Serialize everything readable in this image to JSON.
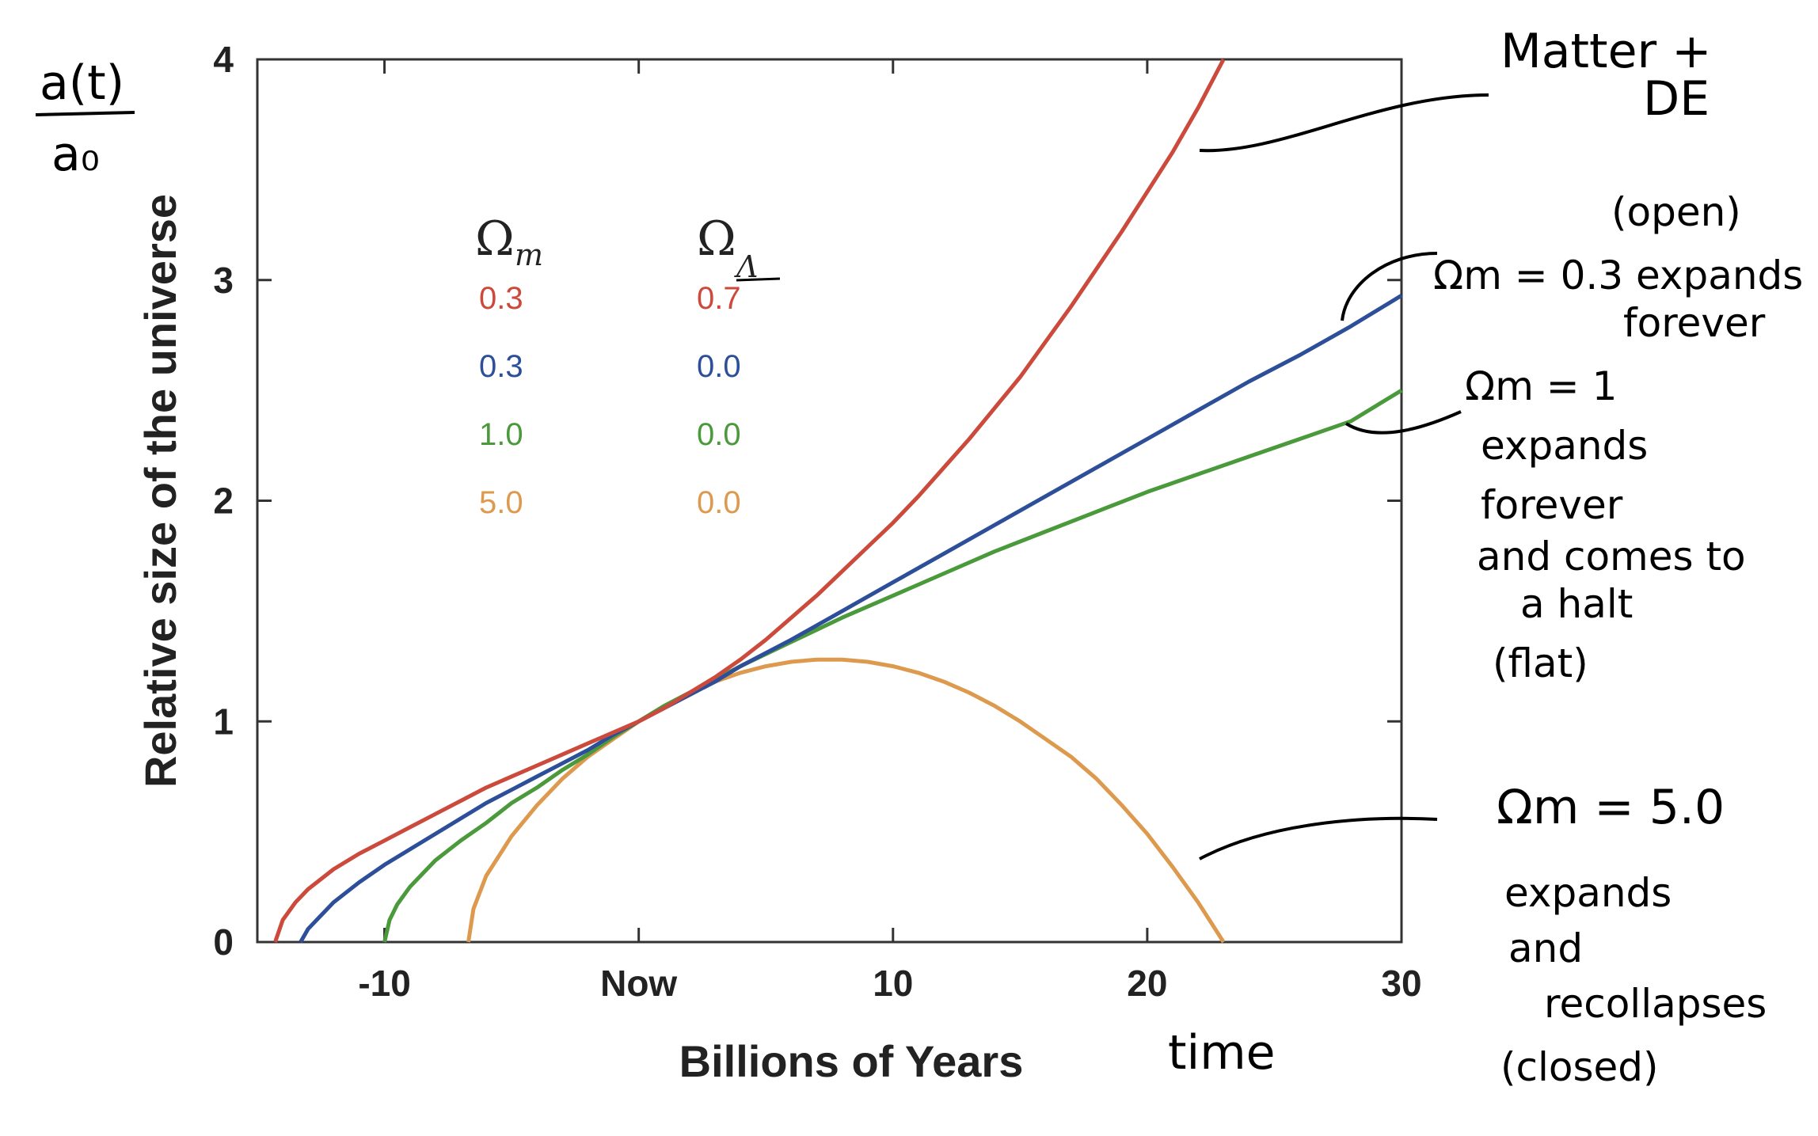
{
  "chart_data": {
    "type": "line",
    "xlabel": "Billions of Years",
    "ylabel": "Relative size of the universe",
    "xlim": [
      -15,
      30
    ],
    "ylim": [
      0,
      4
    ],
    "xticks": [
      {
        "value": -10,
        "label": "-10"
      },
      {
        "value": 0,
        "label": "Now"
      },
      {
        "value": 10,
        "label": "10"
      },
      {
        "value": 20,
        "label": "20"
      },
      {
        "value": 30,
        "label": "30"
      }
    ],
    "yticks": [
      {
        "value": 0,
        "label": "0"
      },
      {
        "value": 1,
        "label": "1"
      },
      {
        "value": 2,
        "label": "2"
      },
      {
        "value": 3,
        "label": "3"
      },
      {
        "value": 4,
        "label": "4"
      }
    ],
    "legend": {
      "header_m": "Ω",
      "header_m_sub": "m",
      "header_l": "Ω",
      "header_l_sub": "Λ"
    },
    "series": [
      {
        "omega_m": "0.3",
        "omega_l": "0.7",
        "color": "#cc4a3c",
        "x": [
          -14.3,
          -14,
          -13.5,
          -13,
          -12,
          -11,
          -10,
          -9,
          -8,
          -7,
          -6,
          -5,
          -4,
          -3,
          -2,
          -1,
          0,
          1,
          2,
          3,
          4,
          5,
          6,
          7,
          8,
          9,
          10,
          11,
          12,
          13,
          14,
          15,
          16,
          17,
          18,
          19,
          20,
          21,
          22,
          23
        ],
        "y": [
          0,
          0.1,
          0.18,
          0.24,
          0.33,
          0.4,
          0.46,
          0.52,
          0.58,
          0.64,
          0.7,
          0.75,
          0.8,
          0.85,
          0.9,
          0.95,
          1.0,
          1.06,
          1.13,
          1.2,
          1.28,
          1.37,
          1.47,
          1.57,
          1.68,
          1.79,
          1.9,
          2.02,
          2.15,
          2.28,
          2.42,
          2.56,
          2.72,
          2.88,
          3.05,
          3.22,
          3.4,
          3.58,
          3.78,
          4.0
        ]
      },
      {
        "omega_m": "0.3",
        "omega_l": "0.0",
        "color": "#2d4f9a",
        "x": [
          -13.3,
          -13,
          -12.5,
          -12,
          -11,
          -10,
          -9,
          -8,
          -7,
          -6,
          -5,
          -4,
          -3,
          -2,
          -1,
          0,
          1,
          2,
          3,
          4,
          6,
          8,
          10,
          12,
          14,
          16,
          18,
          20,
          22,
          24,
          26,
          28,
          30
        ],
        "y": [
          0,
          0.06,
          0.12,
          0.18,
          0.27,
          0.35,
          0.42,
          0.49,
          0.56,
          0.63,
          0.69,
          0.75,
          0.81,
          0.87,
          0.94,
          1.0,
          1.06,
          1.12,
          1.18,
          1.25,
          1.37,
          1.5,
          1.63,
          1.76,
          1.89,
          2.02,
          2.15,
          2.28,
          2.41,
          2.54,
          2.66,
          2.79,
          2.93
        ]
      },
      {
        "omega_m": "1.0",
        "omega_l": "0.0",
        "color": "#4a9a3c",
        "x": [
          -10,
          -9.8,
          -9.5,
          -9,
          -8.5,
          -8,
          -7,
          -6,
          -5,
          -4,
          -3,
          -2,
          -1,
          0,
          1,
          2,
          3,
          4,
          6,
          8,
          10,
          12,
          14,
          16,
          18,
          20,
          22,
          24,
          26,
          28,
          30
        ],
        "y": [
          0,
          0.1,
          0.17,
          0.25,
          0.31,
          0.37,
          0.46,
          0.54,
          0.63,
          0.7,
          0.78,
          0.85,
          0.93,
          1.0,
          1.07,
          1.13,
          1.19,
          1.25,
          1.36,
          1.47,
          1.57,
          1.67,
          1.77,
          1.86,
          1.95,
          2.04,
          2.12,
          2.2,
          2.28,
          2.36,
          2.5
        ]
      },
      {
        "omega_m": "5.0",
        "omega_l": "0.0",
        "color": "#dd9a4e",
        "x": [
          -6.7,
          -6.5,
          -6,
          -5,
          -4,
          -3,
          -2,
          -1,
          0,
          1,
          2,
          3,
          4,
          5,
          6,
          7,
          8,
          9,
          10,
          11,
          12,
          13,
          14,
          15,
          16,
          17,
          18,
          19,
          20,
          21,
          22,
          22.5,
          23
        ],
        "y": [
          0,
          0.15,
          0.3,
          0.48,
          0.62,
          0.74,
          0.84,
          0.92,
          1.0,
          1.07,
          1.13,
          1.18,
          1.22,
          1.25,
          1.27,
          1.28,
          1.28,
          1.27,
          1.25,
          1.22,
          1.18,
          1.13,
          1.07,
          1.0,
          0.92,
          0.84,
          0.74,
          0.62,
          0.49,
          0.34,
          0.18,
          0.09,
          0
        ]
      }
    ]
  },
  "annotations": {
    "y_num": "a(t)",
    "y_den": "a₀",
    "time": "time",
    "red_line1": "Matter +",
    "red_line2": "DE",
    "blue_head": "(open)",
    "blue_line1": "Ωm = 0.3 expands",
    "blue_line2": "forever",
    "green_line1": "Ωm = 1",
    "green_line2": "expands",
    "green_line3": "forever",
    "green_line4": "and comes to",
    "green_line5": "a halt",
    "green_line6": "(flat)",
    "orange_line1": "Ωm = 5.0",
    "orange_line2": "expands",
    "orange_line3": "and",
    "orange_line4": "recollapses",
    "orange_line5": "(closed)"
  }
}
